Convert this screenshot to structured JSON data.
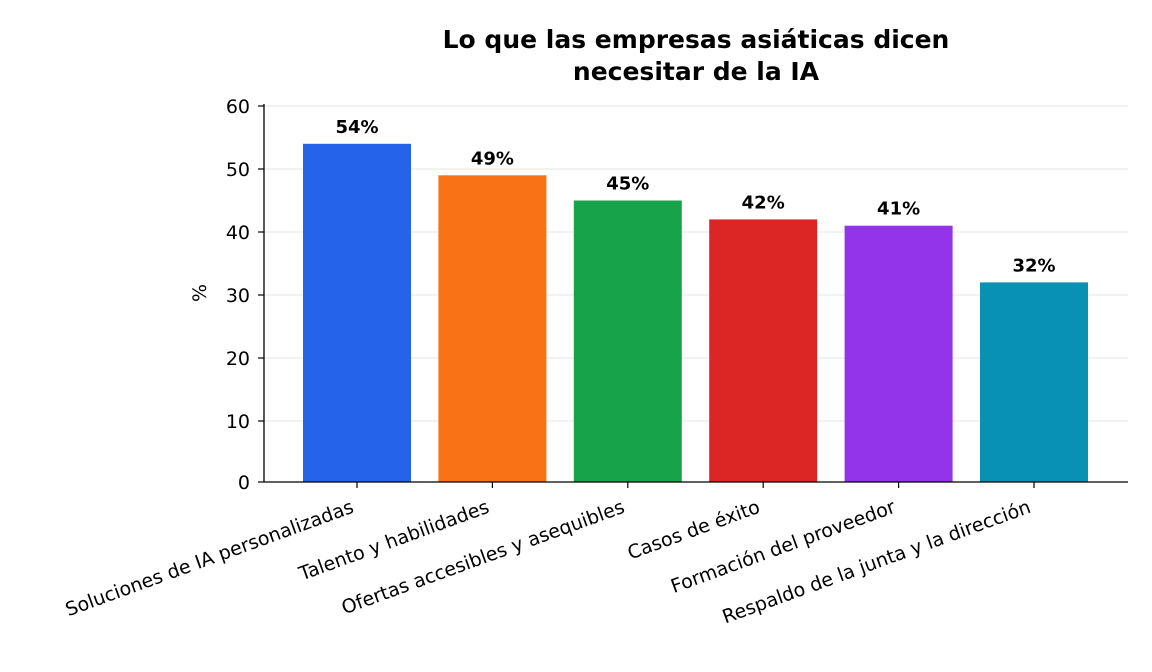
{
  "chart_data": {
    "type": "bar",
    "title": [
      "Lo que las empresas asiáticas dicen",
      "necesitar de la IA"
    ],
    "ylabel": "%",
    "xlabel": "",
    "ylim": [
      0,
      60
    ],
    "yticks": [
      0,
      10,
      20,
      30,
      40,
      50,
      60
    ],
    "grid": true,
    "categories": [
      "Soluciones de IA personalizadas",
      "Talento y habilidades",
      "Ofertas accesibles y asequibles",
      "Casos de éxito",
      "Formación del proveedor",
      "Respaldo de la junta y la dirección"
    ],
    "values": [
      54,
      49,
      45,
      42,
      41,
      32
    ],
    "data_labels": [
      "54%",
      "49%",
      "45%",
      "42%",
      "41%",
      "32%"
    ],
    "colors": [
      "#2563eb",
      "#f97316",
      "#16a34a",
      "#dc2626",
      "#9333ea",
      "#0891b2"
    ]
  }
}
